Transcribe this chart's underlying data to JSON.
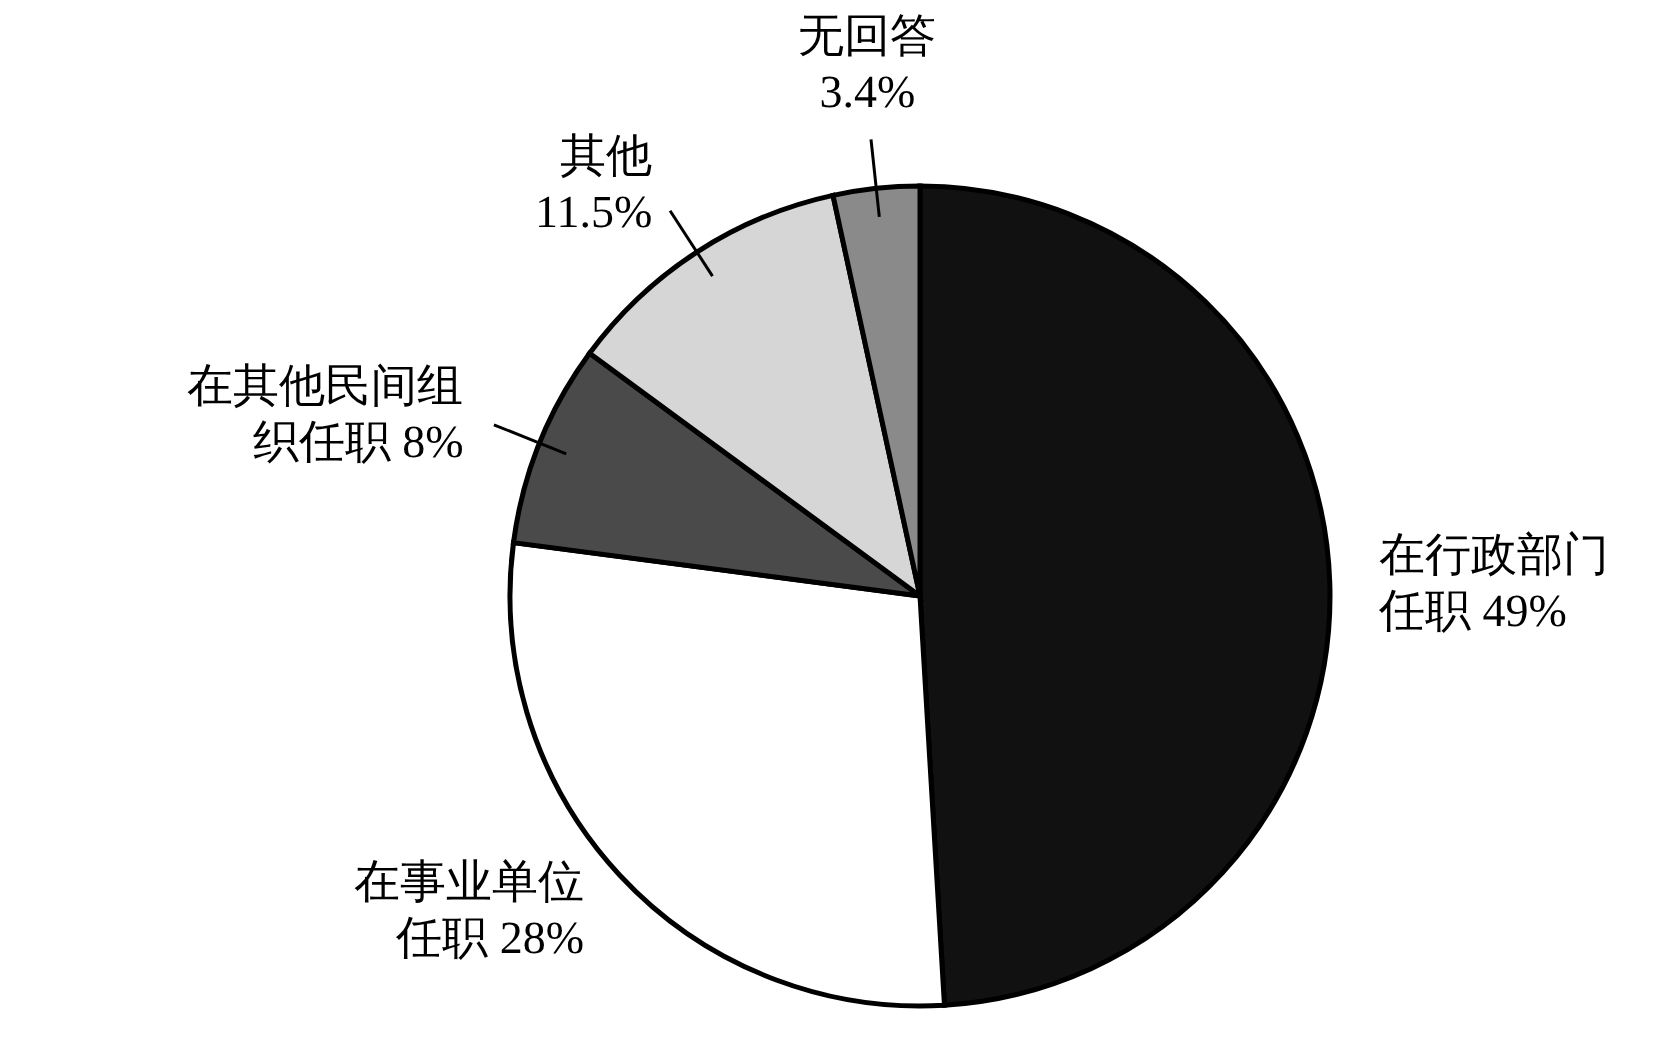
{
  "chart_data": {
    "type": "pie",
    "categories": [
      "在行政部门任职",
      "在事业单位任职",
      "在其他民间组织任职",
      "其他",
      "无回答"
    ],
    "values": [
      49,
      28,
      8,
      11.5,
      3.4
    ],
    "value_labels": [
      "49%",
      "28%",
      "8%",
      "11.5%",
      "3.4%"
    ],
    "colors": [
      "#111111",
      "#ffffff",
      "#4a4a4a",
      "#d6d6d6",
      "#8a8a8a"
    ]
  }
}
